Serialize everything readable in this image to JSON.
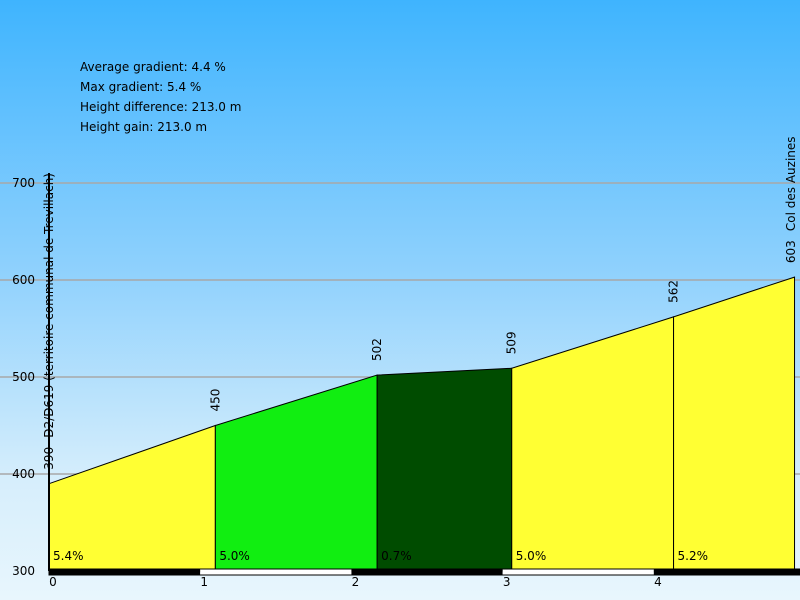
{
  "stats": {
    "average_gradient": "Average gradient: 4.4 %",
    "max_gradient": "Max gradient: 5.4 %",
    "height_difference": "Height difference: 213.0 m",
    "height_gain": "Height gain: 213.0 m"
  },
  "chart_data": {
    "type": "area",
    "xlim": [
      0,
      4.9
    ],
    "ylim": [
      300,
      700
    ],
    "y_ticks": [
      300,
      400,
      500,
      600,
      700
    ],
    "x_ticks": [
      0,
      1,
      2,
      3,
      4
    ],
    "grid": true,
    "points": [
      {
        "x": 0,
        "y": 390,
        "label": "390",
        "name": "D2/D619 (territoire communal de Trevillach)"
      },
      {
        "x": 1.1,
        "y": 450,
        "label": "450",
        "name": ""
      },
      {
        "x": 2.17,
        "y": 502,
        "label": "502",
        "name": ""
      },
      {
        "x": 3.06,
        "y": 509,
        "label": "509",
        "name": ""
      },
      {
        "x": 4.13,
        "y": 562,
        "label": "562",
        "name": ""
      },
      {
        "x": 4.93,
        "y": 603,
        "label": "603",
        "name": "Col des Auzines"
      }
    ],
    "segments": [
      {
        "gradient": "5.4%",
        "color": "#ffff33"
      },
      {
        "gradient": "5.0%",
        "color": "#11ee11"
      },
      {
        "gradient": "0.7%",
        "color": "#004c00"
      },
      {
        "gradient": "5.0%",
        "color": "#ffff33"
      },
      {
        "gradient": "5.2%",
        "color": "#ffff33"
      }
    ]
  }
}
